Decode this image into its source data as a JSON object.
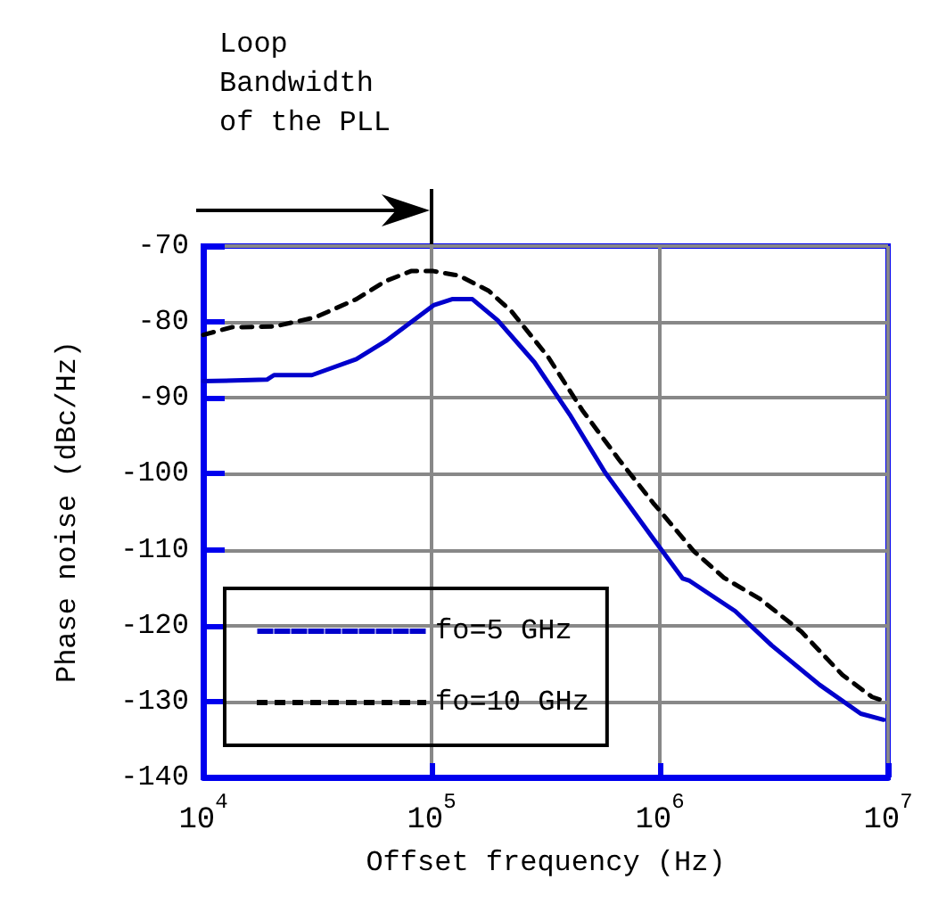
{
  "chart_data": {
    "type": "line",
    "xlabel": "Offset frequency (Hz)",
    "ylabel": "Phase noise (dBc/Hz)",
    "log": "x",
    "xlim": [
      10000,
      10000000
    ],
    "ylim": [
      -140,
      -70
    ],
    "xticks": [
      {
        "value": 10000,
        "label": "10$^{4}$"
      },
      {
        "value": 100000,
        "label": "10$^{5}$"
      },
      {
        "value": 1000000,
        "label": "10$^{6}$"
      },
      {
        "value": 10000000,
        "label": "10$^{7}$"
      }
    ],
    "yticks": [
      -140,
      -130,
      -120,
      -110,
      -100,
      -90,
      -80,
      -70
    ],
    "grid": true,
    "legend": "bottom left",
    "marker": "none",
    "annotations": [
      "Loop\nBandwidth\nof the PLL"
    ],
    "series": [
      {
        "name": "fo=5 GHz",
        "color": "#0000cc",
        "line_style": "solid",
        "x": [
          10000,
          19000,
          20400,
          29900,
          46800,
          63100,
          102000,
          123000,
          151000,
          195000,
          282000,
          407000,
          575000,
          933000,
          1260000,
          1350000,
          2140000,
          3090000,
          5010000,
          7590000,
          9550000
        ],
        "values": [
          -87.8,
          -87.6,
          -87.0,
          -87.0,
          -84.9,
          -82.5,
          -77.8,
          -77.0,
          -77.0,
          -79.8,
          -85.3,
          -92.4,
          -99.8,
          -108.5,
          -113.8,
          -114.1,
          -118.1,
          -122.6,
          -127.8,
          -131.6,
          -132.4
        ]
      },
      {
        "name": "fo=10 GHz",
        "color": "#000000",
        "line_style": "dashed",
        "x": [
          10000,
          13300,
          20400,
          30900,
          46800,
          63100,
          81300,
          102000,
          132000,
          178000,
          224000,
          324000,
          457000,
          661000,
          933000,
          1410000,
          1910000,
          2750000,
          4170000,
          6310000,
          8510000,
          9330000
        ],
        "values": [
          -81.7,
          -80.7,
          -80.6,
          -79.4,
          -77.0,
          -74.6,
          -73.3,
          -73.3,
          -73.9,
          -75.9,
          -78.6,
          -84.6,
          -91.6,
          -98.1,
          -103.8,
          -110.2,
          -113.7,
          -116.5,
          -120.8,
          -126.5,
          -129.4,
          -129.8
        ]
      }
    ]
  }
}
